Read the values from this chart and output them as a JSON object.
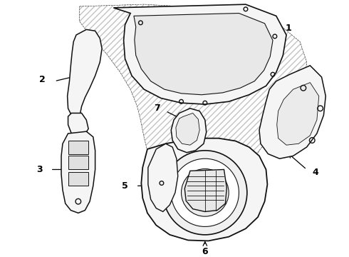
{
  "bg_color": "#ffffff",
  "line_color": "#000000",
  "figsize": [
    4.9,
    3.6
  ],
  "dpi": 100,
  "hatch_color": "#555555",
  "part_face": "#f5f5f5",
  "part_edge": "#111111"
}
